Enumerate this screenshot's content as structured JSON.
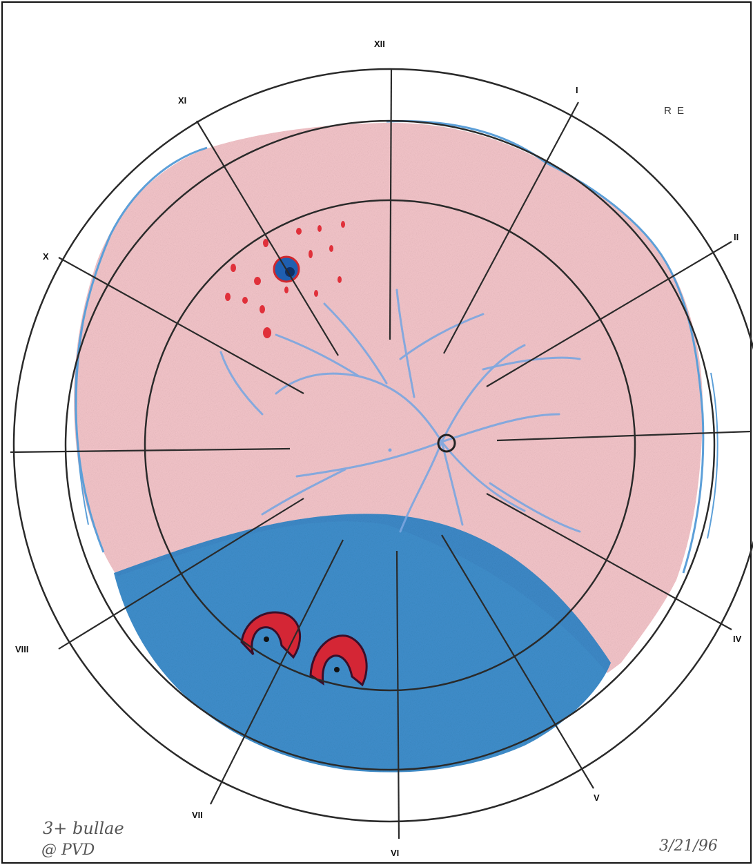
{
  "eye_label": "R E",
  "clock_hours": {
    "xii": "XII",
    "i": "I",
    "ii": "II",
    "iv": "IV",
    "v": "V",
    "vi": "VI",
    "vii": "VII",
    "viii": "VIII",
    "x": "X",
    "xi": "XI"
  },
  "notes": {
    "line1": "3+ bullae",
    "line2": "@ PVD",
    "date": "3/21/96"
  },
  "colors": {
    "retina": "#f5c3c8",
    "detachment": "#2f86c9",
    "vessels": "#7aa6e0",
    "hemorrhage": "#e0303a",
    "grid": "#2a2a2a"
  }
}
